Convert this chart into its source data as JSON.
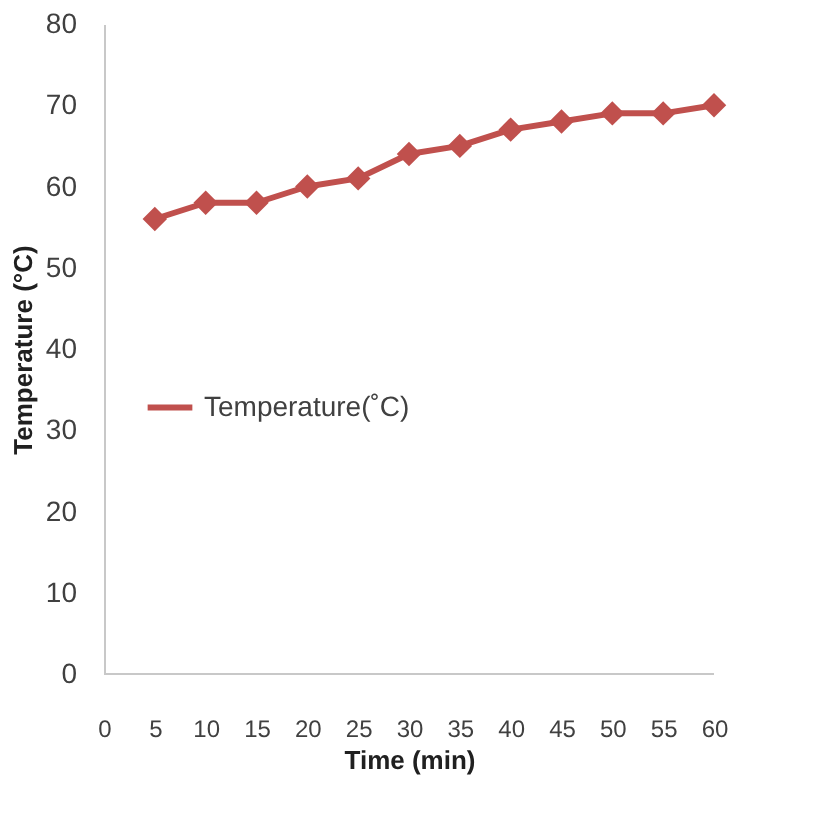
{
  "chart_data": {
    "type": "line",
    "xlabel": "Time (min)",
    "ylabel": "Temperature (°C)",
    "x": [
      5,
      10,
      15,
      20,
      25,
      30,
      35,
      40,
      45,
      50,
      55,
      60
    ],
    "series": [
      {
        "name": "Temperature(˚C)",
        "color": "#c0504d",
        "values": [
          56,
          58,
          58,
          60,
          61,
          64,
          65,
          67,
          68,
          69,
          69,
          70
        ]
      }
    ],
    "xlim": [
      0,
      60
    ],
    "xticks": [
      0,
      5,
      10,
      15,
      20,
      25,
      30,
      35,
      40,
      45,
      50,
      55,
      60
    ],
    "ylim": [
      0,
      80
    ],
    "yticks": [
      0,
      10,
      20,
      30,
      40,
      50,
      60,
      70,
      80
    ],
    "grid": false,
    "legend": "left",
    "marker": "diamond",
    "line_style": "solid"
  }
}
